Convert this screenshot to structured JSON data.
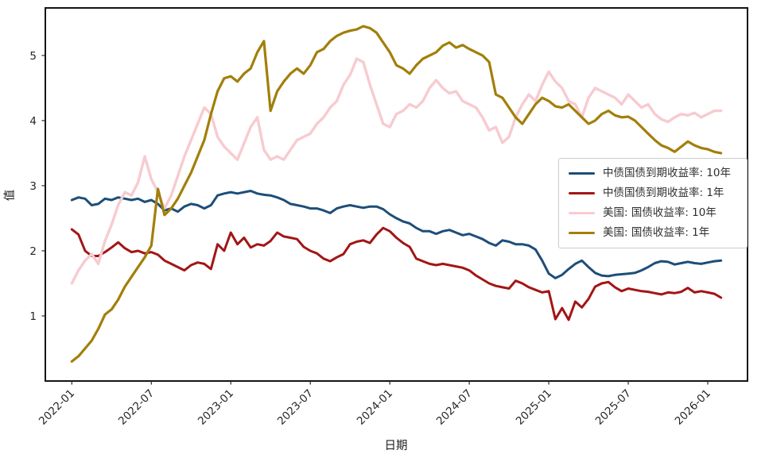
{
  "figure": {
    "xlabel": "日期",
    "ylabel": "值"
  },
  "chart_data": {
    "type": "line",
    "title": "",
    "xlabel": "日期",
    "ylabel": "值",
    "grid": false,
    "legend_position": "center right",
    "x_unit": "months since 2022-01 (t = index * 0.5 months)",
    "x_start_month": 0,
    "x_step_months": 0.5,
    "xlim_months": [
      -2,
      51
    ],
    "ylim": [
      0,
      5.73
    ],
    "y_ticks": [
      1,
      2,
      3,
      4,
      5
    ],
    "x_ticks_months": [
      0,
      6,
      12,
      18,
      24,
      30,
      36,
      42,
      48
    ],
    "x_tick_labels": [
      "2022-01",
      "2022-07",
      "2023-01",
      "2023-07",
      "2024-01",
      "2024-07",
      "2025-01",
      "2025-07",
      "2026-01"
    ],
    "series": [
      {
        "name": "中债国债到期收益率: 10年",
        "color": "#1d4e79",
        "linewidth": 3,
        "values": [
          2.78,
          2.82,
          2.8,
          2.7,
          2.72,
          2.8,
          2.78,
          2.82,
          2.8,
          2.78,
          2.8,
          2.75,
          2.78,
          2.72,
          2.62,
          2.65,
          2.6,
          2.68,
          2.72,
          2.7,
          2.65,
          2.7,
          2.85,
          2.88,
          2.9,
          2.88,
          2.9,
          2.92,
          2.88,
          2.86,
          2.85,
          2.82,
          2.78,
          2.72,
          2.7,
          2.68,
          2.65,
          2.65,
          2.62,
          2.58,
          2.65,
          2.68,
          2.7,
          2.68,
          2.66,
          2.68,
          2.68,
          2.64,
          2.56,
          2.5,
          2.45,
          2.42,
          2.35,
          2.3,
          2.3,
          2.26,
          2.3,
          2.32,
          2.28,
          2.24,
          2.26,
          2.22,
          2.18,
          2.12,
          2.08,
          2.16,
          2.14,
          2.1,
          2.1,
          2.08,
          2.02,
          1.85,
          1.65,
          1.58,
          1.63,
          1.72,
          1.8,
          1.85,
          1.75,
          1.66,
          1.62,
          1.61,
          1.63,
          1.64,
          1.65,
          1.66,
          1.7,
          1.75,
          1.81,
          1.84,
          1.83,
          1.79,
          1.81,
          1.83,
          1.81,
          1.8,
          1.82,
          1.84,
          1.85
        ]
      },
      {
        "name": "中债国债到期收益率: 1年",
        "color": "#a31515",
        "linewidth": 3,
        "values": [
          2.33,
          2.25,
          2.0,
          1.92,
          1.92,
          1.98,
          2.05,
          2.13,
          2.04,
          1.98,
          2.0,
          1.96,
          1.98,
          1.94,
          1.85,
          1.8,
          1.75,
          1.7,
          1.78,
          1.82,
          1.8,
          1.72,
          2.1,
          2.0,
          2.28,
          2.1,
          2.2,
          2.05,
          2.1,
          2.08,
          2.15,
          2.28,
          2.22,
          2.2,
          2.18,
          2.06,
          2.0,
          1.96,
          1.88,
          1.84,
          1.9,
          1.95,
          2.1,
          2.14,
          2.16,
          2.12,
          2.25,
          2.35,
          2.3,
          2.2,
          2.12,
          2.06,
          1.88,
          1.84,
          1.8,
          1.78,
          1.8,
          1.78,
          1.76,
          1.74,
          1.7,
          1.62,
          1.56,
          1.5,
          1.46,
          1.44,
          1.42,
          1.54,
          1.5,
          1.44,
          1.4,
          1.36,
          1.38,
          0.95,
          1.12,
          0.94,
          1.22,
          1.13,
          1.26,
          1.45,
          1.5,
          1.52,
          1.44,
          1.38,
          1.42,
          1.4,
          1.38,
          1.37,
          1.35,
          1.33,
          1.36,
          1.35,
          1.37,
          1.43,
          1.36,
          1.38,
          1.36,
          1.34,
          1.28
        ]
      },
      {
        "name": "美国: 国债收益率: 10年",
        "color": "#f7cbd0",
        "linewidth": 3.4,
        "values": [
          1.5,
          1.7,
          1.85,
          1.95,
          1.8,
          2.15,
          2.4,
          2.7,
          2.9,
          2.85,
          3.05,
          3.45,
          3.1,
          2.9,
          2.65,
          2.85,
          3.15,
          3.45,
          3.7,
          3.95,
          4.2,
          4.1,
          3.75,
          3.6,
          3.5,
          3.4,
          3.65,
          3.9,
          4.05,
          3.55,
          3.4,
          3.45,
          3.4,
          3.55,
          3.7,
          3.75,
          3.8,
          3.95,
          4.05,
          4.2,
          4.3,
          4.55,
          4.7,
          4.95,
          4.9,
          4.55,
          4.25,
          3.95,
          3.9,
          4.1,
          4.15,
          4.25,
          4.2,
          4.3,
          4.5,
          4.62,
          4.5,
          4.42,
          4.45,
          4.3,
          4.25,
          4.2,
          4.05,
          3.85,
          3.9,
          3.66,
          3.75,
          4.05,
          4.25,
          4.4,
          4.3,
          4.55,
          4.75,
          4.6,
          4.5,
          4.3,
          4.25,
          4.05,
          4.35,
          4.5,
          4.45,
          4.4,
          4.35,
          4.25,
          4.4,
          4.3,
          4.2,
          4.25,
          4.1,
          4.02,
          3.98,
          4.05,
          4.1,
          4.08,
          4.12,
          4.05,
          4.1,
          4.15,
          4.15
        ]
      },
      {
        "name": "美国: 国债收益率: 1年",
        "color": "#a27f0a",
        "linewidth": 3.2,
        "values": [
          0.3,
          0.38,
          0.5,
          0.62,
          0.8,
          1.02,
          1.1,
          1.25,
          1.45,
          1.6,
          1.75,
          1.9,
          2.08,
          2.95,
          2.55,
          2.65,
          2.8,
          3.0,
          3.2,
          3.45,
          3.7,
          4.1,
          4.45,
          4.65,
          4.68,
          4.6,
          4.72,
          4.8,
          5.05,
          5.22,
          4.15,
          4.45,
          4.6,
          4.72,
          4.8,
          4.72,
          4.85,
          5.05,
          5.1,
          5.22,
          5.3,
          5.35,
          5.38,
          5.4,
          5.45,
          5.42,
          5.35,
          5.2,
          5.05,
          4.85,
          4.8,
          4.72,
          4.85,
          4.95,
          5.0,
          5.05,
          5.15,
          5.2,
          5.12,
          5.16,
          5.1,
          5.05,
          5.0,
          4.9,
          4.4,
          4.35,
          4.2,
          4.05,
          3.95,
          4.1,
          4.25,
          4.35,
          4.3,
          4.22,
          4.2,
          4.25,
          4.15,
          4.05,
          3.95,
          4.0,
          4.1,
          4.15,
          4.08,
          4.05,
          4.06,
          4.0,
          3.9,
          3.8,
          3.7,
          3.62,
          3.58,
          3.52,
          3.6,
          3.68,
          3.62,
          3.58,
          3.56,
          3.52,
          3.5
        ]
      }
    ]
  }
}
